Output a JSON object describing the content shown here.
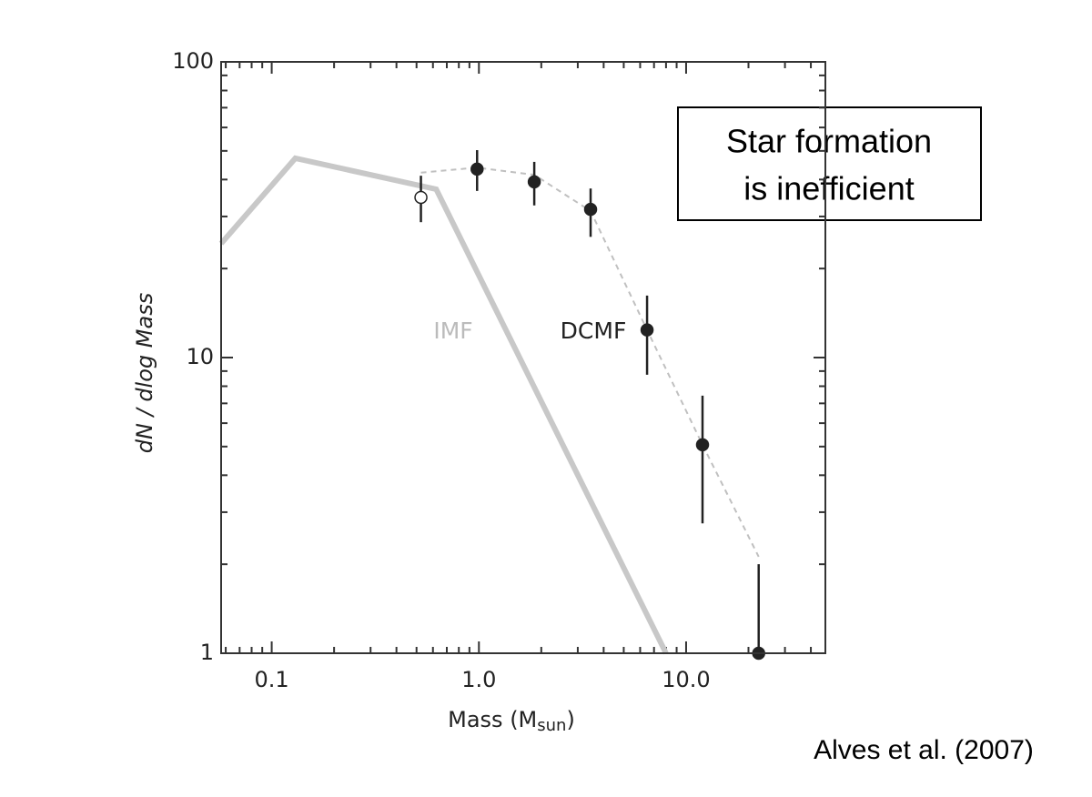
{
  "chart_data": {
    "type": "line",
    "xlog": true,
    "ylog": true,
    "xlim": [
      0.057,
      47
    ],
    "ylim": [
      1,
      100
    ],
    "xticks": [
      0.1,
      {
        "value": 1,
        "label": "1.0"
      },
      {
        "value": 10,
        "label": "10.0"
      }
    ],
    "xminor_ticks": [
      0.06,
      0.07,
      0.08,
      0.09,
      0.2,
      0.3,
      0.4,
      0.5,
      0.6,
      0.7,
      0.8,
      0.9,
      2,
      3,
      4,
      5,
      6,
      7,
      8,
      9,
      20,
      30,
      40
    ],
    "yticks": [
      1,
      10,
      100
    ],
    "yminor_ticks": [
      2,
      3,
      4,
      5,
      6,
      7,
      8,
      9,
      20,
      30,
      40,
      50,
      60,
      70,
      80,
      90
    ],
    "x_label": {
      "main": "Mass (M",
      "sub": "sun",
      "end": ")"
    },
    "y_label": "dN / dlog Mass",
    "series": [
      {
        "name": "IMF",
        "color": "#c8c8c8",
        "x": [
          0.057,
          0.13,
          0.622,
          8.0
        ],
        "values": [
          24.3,
          47.2,
          37.1,
          1
        ]
      },
      {
        "color": "#c0c0c0",
        "dashed": true,
        "x": [
          0.525,
          0.98,
          1.85,
          3.46,
          6.48,
          12.0,
          22.4
        ],
        "values": [
          42.2,
          43.9,
          41.5,
          31.3,
          12.4,
          5.07,
          2.12
        ]
      },
      {
        "color": "#222222",
        "marker": "open",
        "x": [
          0.525
        ],
        "values": [
          34.8
        ],
        "lower": [
          28.7
        ],
        "upper": [
          41.2
        ]
      },
      {
        "name": "DCMF",
        "color": "#222222",
        "marker": "filled",
        "x": [
          0.98,
          1.85,
          3.46,
          6.48,
          12.0,
          22.4
        ],
        "values": [
          43.4,
          39.3,
          31.7,
          12.4,
          5.07,
          1
        ],
        "lower": [
          36.6,
          32.7,
          25.6,
          8.75,
          2.75,
          1
        ],
        "upper": [
          50.3,
          45.9,
          37.3,
          16.2,
          7.43,
          2.0
        ]
      }
    ],
    "note_box": [
      "Star formation",
      "is inefficient"
    ],
    "citation": "Alves et al. (2007)"
  }
}
